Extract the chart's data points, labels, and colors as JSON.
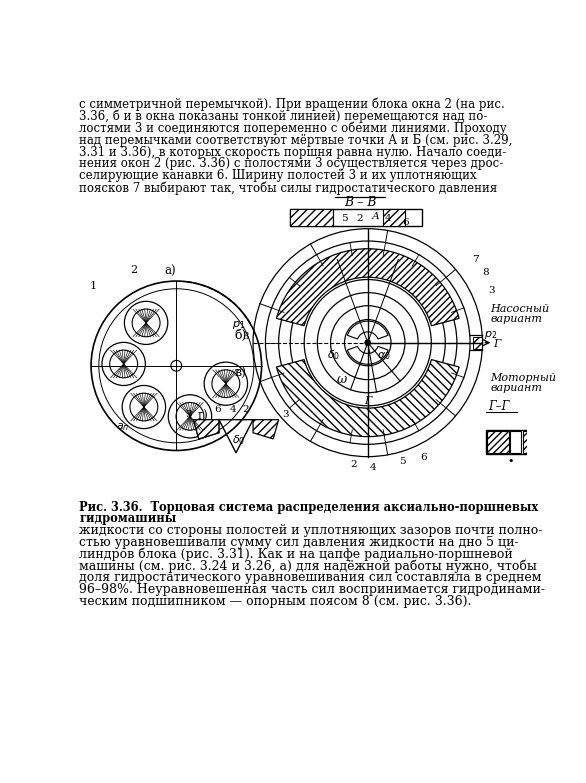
{
  "top_text_lines": [
    "с симметричной перемычкой). При вращении блока окна 2 (на рис.",
    "3.36, б и в окна показаны тонкой линией) перемещаются над по-",
    "лостями 3 и соединяются попеременно с обеими линиями. Проходу",
    "над перемычками соответствуют мёртвые точки А и Б (см. рис. 3.29,",
    "3.31 и 3.36), в которых скорость поршня равна нулю. Начало соеди-",
    "нения окон 2 (рис. 3.36) с полостями 3 осуществляется через дрос-",
    "селирующие канавки 6. Ширину полостей 3 и их уплотняющих",
    "поясков 7 выбирают так, чтобы силы гидростатического давления"
  ],
  "section_label": "В – В",
  "caption_line1": "Рис. 3.36.  Торцовая система распределения аксиально-поршневых",
  "caption_line2": "гидромашины",
  "bottom_text_lines": [
    "жидкости со стороны полостей и уплотняющих зазоров почти полно-",
    "стью уравновешивали сумму сил давления жидкости на дно 5 ци-",
    "линдров блока (рис. 3.31). Как и на цапфе радиально-поршневой",
    "машины (см. рис. 3.24 и 3.26, а) для надёжной работы нужно, чтобы",
    "доля гидростатического уравновешивания сил составляла в среднем",
    "96–98%. Неуравновешенная часть сил воспринимается гидродинами-",
    "ческим подшипником — опорным поясом 8 (см. рис. 3.36)."
  ],
  "bg_color": "#ffffff",
  "text_color": "#000000",
  "line_color": "#000000"
}
